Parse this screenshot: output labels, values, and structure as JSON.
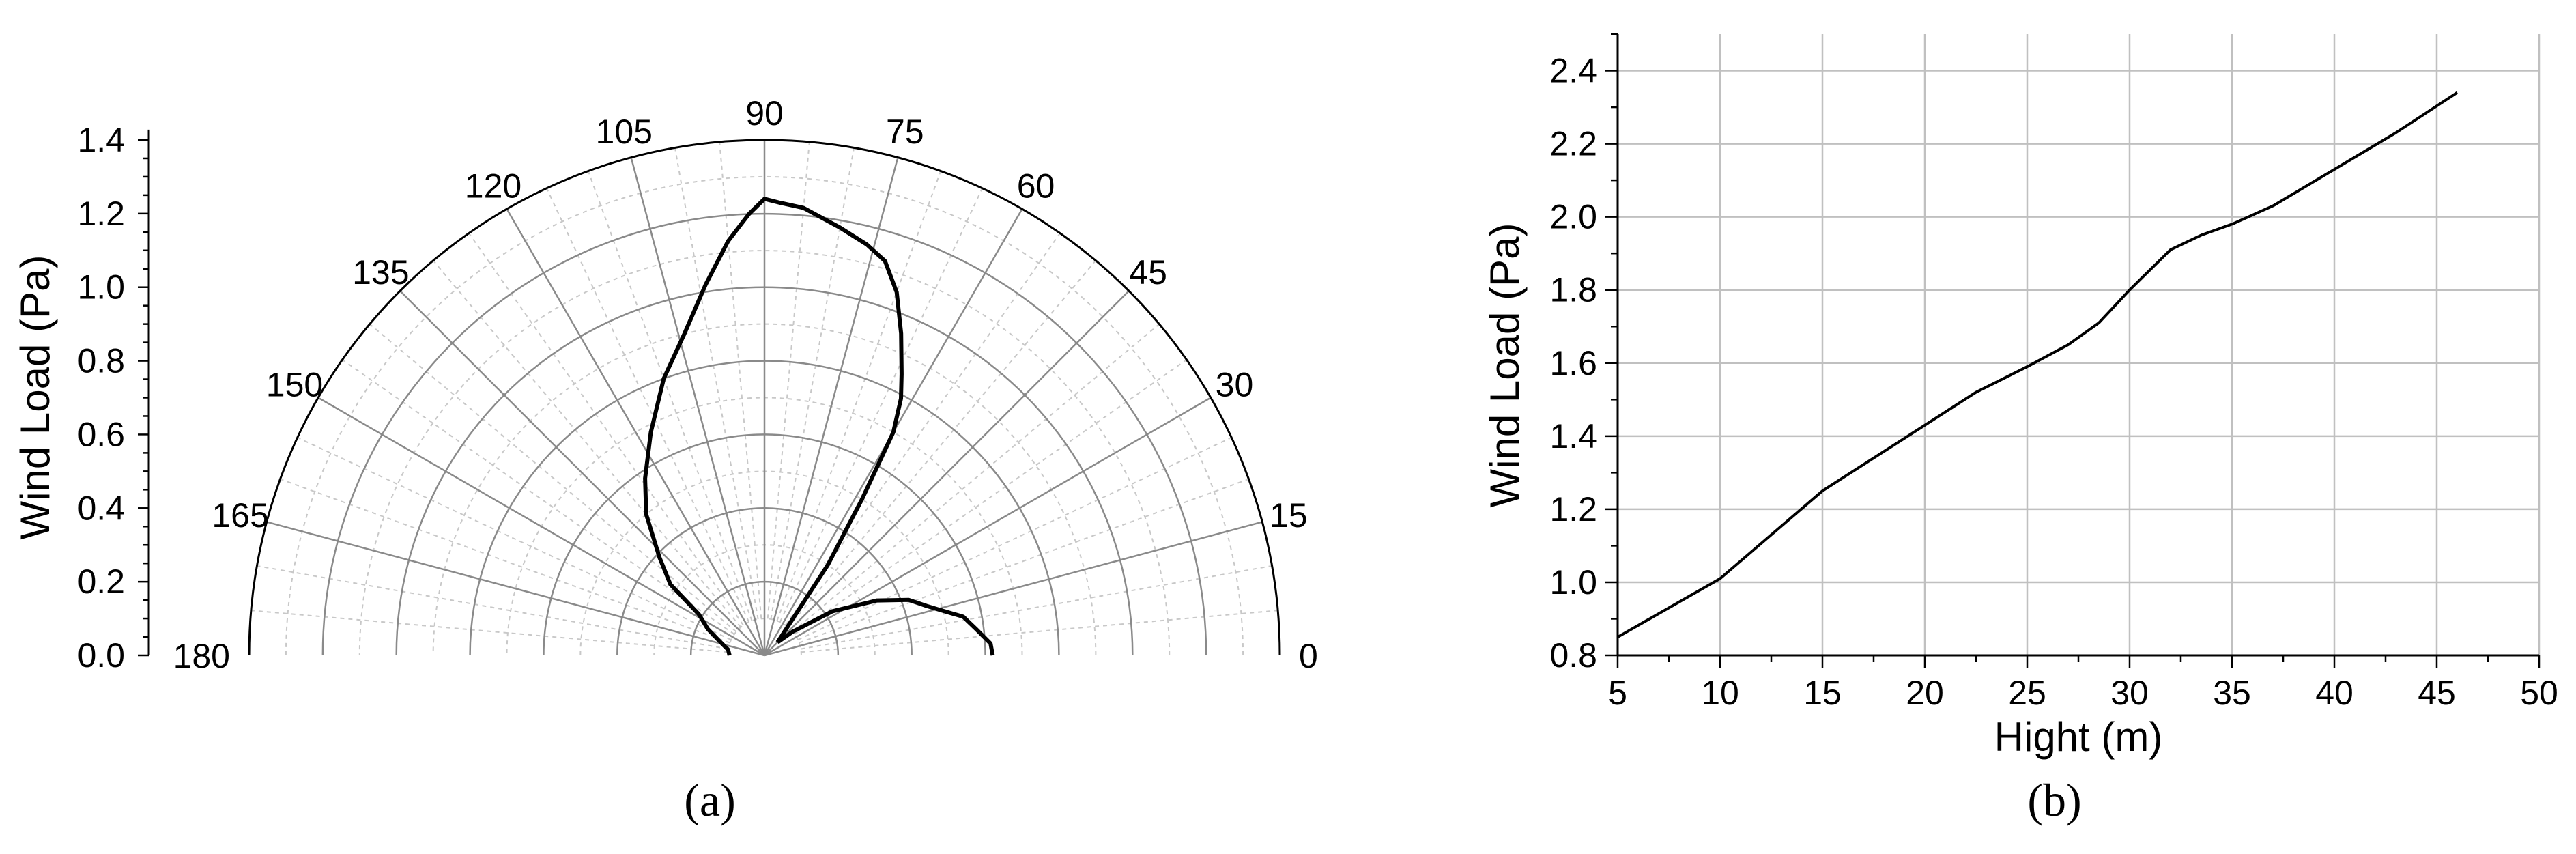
{
  "chart_data": [
    {
      "type": "polar",
      "caption": "(a)",
      "ylabel": "Wind Load (Pa)",
      "r_ticks": [
        "0.0",
        "0.2",
        "0.4",
        "0.6",
        "0.8",
        "1.0",
        "1.2",
        "1.4"
      ],
      "r_range": [
        0,
        1.4
      ],
      "angle_range_deg": [
        0,
        180
      ],
      "angle_ticks": [
        "0",
        "15",
        "30",
        "45",
        "60",
        "75",
        "90",
        "105",
        "120",
        "135",
        "150",
        "165",
        "180"
      ],
      "grid": true,
      "series": [
        {
          "points": [
            {
              "angle": 0,
              "r": 0.62
            },
            {
              "angle": 3,
              "r": 0.615
            },
            {
              "angle": 7,
              "r": 0.58
            },
            {
              "angle": 11,
              "r": 0.55
            },
            {
              "angle": 14,
              "r": 0.5
            },
            {
              "angle": 17,
              "r": 0.46
            },
            {
              "angle": 21,
              "r": 0.42
            },
            {
              "angle": 26,
              "r": 0.34
            },
            {
              "angle": 33,
              "r": 0.22
            },
            {
              "angle": 40,
              "r": 0.1
            },
            {
              "angle": 45,
              "r": 0.05
            }
          ]
        },
        {
          "points": [
            {
              "angle": 45,
              "r": 0.05
            },
            {
              "angle": 55,
              "r": 0.3
            },
            {
              "angle": 58,
              "r": 0.5
            },
            {
              "angle": 60,
              "r": 0.7
            },
            {
              "angle": 62,
              "r": 0.79
            },
            {
              "angle": 64,
              "r": 0.85
            },
            {
              "angle": 67,
              "r": 0.95
            },
            {
              "angle": 70,
              "r": 1.05
            },
            {
              "angle": 73,
              "r": 1.12
            },
            {
              "angle": 76,
              "r": 1.15
            },
            {
              "angle": 80,
              "r": 1.18
            },
            {
              "angle": 85,
              "r": 1.22
            },
            {
              "angle": 88,
              "r": 1.23
            },
            {
              "angle": 90,
              "r": 1.24
            },
            {
              "angle": 92,
              "r": 1.2
            },
            {
              "angle": 95,
              "r": 1.13
            },
            {
              "angle": 99,
              "r": 1.02
            },
            {
              "angle": 104,
              "r": 0.9
            },
            {
              "angle": 110,
              "r": 0.8
            },
            {
              "angle": 117,
              "r": 0.68
            },
            {
              "angle": 124,
              "r": 0.58
            },
            {
              "angle": 130,
              "r": 0.5
            },
            {
              "angle": 137,
              "r": 0.39
            },
            {
              "angle": 143,
              "r": 0.32
            },
            {
              "angle": 148,
              "r": 0.21
            },
            {
              "angle": 155,
              "r": 0.17
            },
            {
              "angle": 162,
              "r": 0.13
            },
            {
              "angle": 171,
              "r": 0.1
            },
            {
              "angle": 180,
              "r": 0.095
            }
          ]
        }
      ]
    },
    {
      "type": "line",
      "caption": "(b)",
      "xlabel": "Hight (m)",
      "ylabel": "Wind Load (Pa)",
      "xlim": [
        5,
        50
      ],
      "ylim": [
        0.8,
        2.5
      ],
      "xticks": [
        "5",
        "10",
        "15",
        "20",
        "25",
        "30",
        "35",
        "40",
        "45",
        "50"
      ],
      "yticks": [
        "0.8",
        "1.0",
        "1.2",
        "1.4",
        "1.6",
        "1.8",
        "2.0",
        "2.2",
        "2.4"
      ],
      "grid": true,
      "series": [
        {
          "x": [
            5,
            7.5,
            10,
            12.5,
            15,
            17.5,
            20,
            22.5,
            25,
            27,
            28.5,
            30,
            32,
            33.5,
            35,
            37,
            40,
            43,
            46
          ],
          "y": [
            0.85,
            0.93,
            1.01,
            1.13,
            1.25,
            1.34,
            1.43,
            1.52,
            1.59,
            1.65,
            1.71,
            1.8,
            1.91,
            1.95,
            1.98,
            2.03,
            2.13,
            2.23,
            2.34
          ]
        }
      ]
    }
  ]
}
